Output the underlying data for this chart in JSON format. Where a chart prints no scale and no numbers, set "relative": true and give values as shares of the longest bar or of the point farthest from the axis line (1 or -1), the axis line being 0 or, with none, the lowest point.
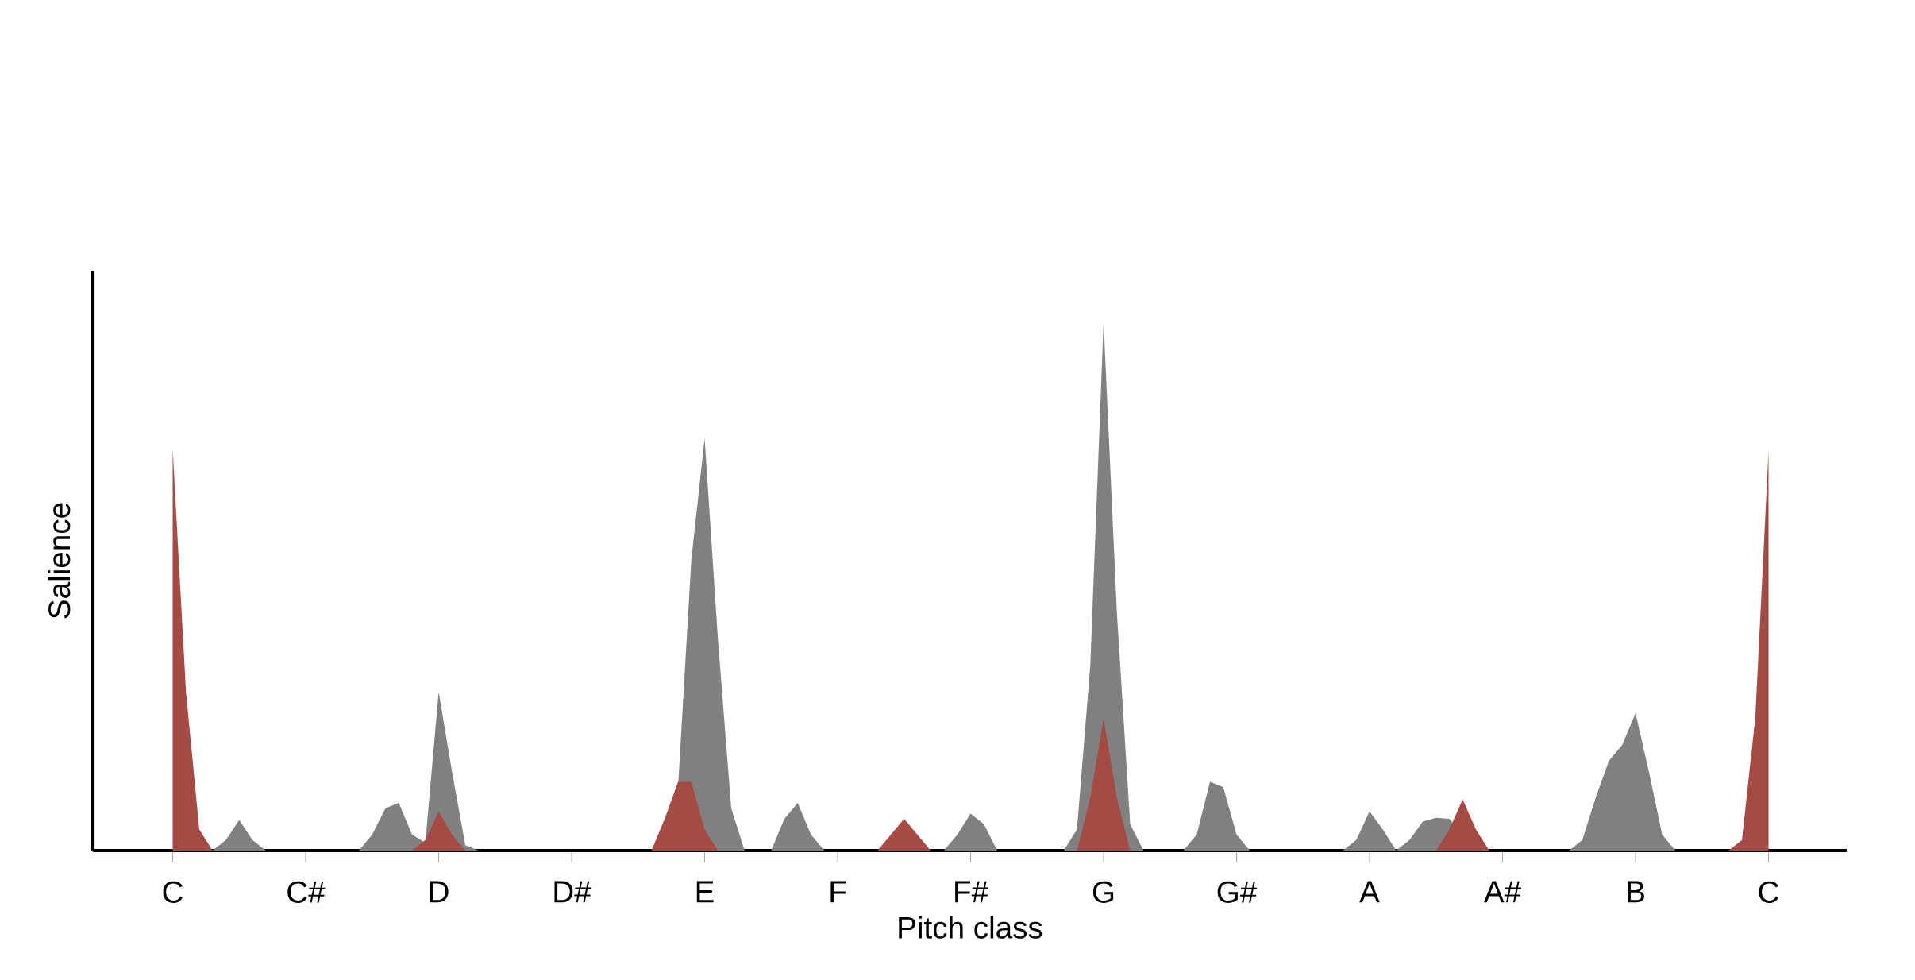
{
  "chart_data": {
    "type": "area",
    "xlabel": "Pitch class",
    "ylabel": "Salience",
    "relative": true,
    "categories": [
      "C",
      null,
      null,
      null,
      null,
      null,
      null,
      null,
      null,
      null,
      "C#",
      null,
      null,
      null,
      null,
      null,
      null,
      null,
      null,
      null,
      "D",
      null,
      null,
      null,
      null,
      null,
      null,
      null,
      null,
      null,
      "D#",
      null,
      null,
      null,
      null,
      null,
      null,
      null,
      null,
      null,
      "E",
      null,
      null,
      null,
      null,
      null,
      null,
      null,
      null,
      null,
      "F",
      null,
      null,
      null,
      null,
      null,
      null,
      null,
      null,
      null,
      "F#",
      null,
      null,
      null,
      null,
      null,
      null,
      null,
      null,
      null,
      "G",
      null,
      null,
      null,
      null,
      null,
      null,
      null,
      null,
      null,
      "G#",
      null,
      null,
      null,
      null,
      null,
      null,
      null,
      null,
      null,
      "A",
      null,
      null,
      null,
      null,
      null,
      null,
      null,
      null,
      null,
      "A#",
      null,
      null,
      null,
      null,
      null,
      null,
      null,
      null,
      null,
      "B",
      null,
      null,
      null,
      null,
      null,
      null,
      null,
      null,
      null,
      "C"
    ],
    "series": [
      {
        "color": "#808080",
        "values": [
          0,
          0,
          0,
          0,
          0.02,
          0.058,
          0.02,
          0,
          0,
          0,
          0,
          0,
          0,
          0,
          0,
          0.03,
          0.08,
          0.09,
          0.03,
          0.015,
          0.3,
          0.15,
          0.01,
          0,
          0,
          0,
          0,
          0,
          0,
          0,
          0,
          0,
          0,
          0,
          0,
          0,
          0,
          0,
          0.12,
          0.55,
          0.78,
          0.4,
          0.08,
          0,
          0,
          0,
          0.06,
          0.09,
          0.03,
          0,
          0,
          0,
          0,
          0,
          0,
          0,
          0,
          0,
          0,
          0.03,
          0.07,
          0.05,
          0,
          0,
          0,
          0,
          0,
          0,
          0.04,
          0.35,
          1,
          0.45,
          0.05,
          0,
          0,
          0,
          0,
          0.03,
          0.13,
          0.12,
          0.03,
          0,
          0,
          0,
          0,
          0,
          0,
          0,
          0,
          0.02,
          0.074,
          0.04,
          0,
          0.02,
          0.055,
          0.062,
          0.06,
          null,
          0,
          0,
          0,
          0,
          0,
          0,
          0,
          0,
          0.02,
          0.1,
          0.17,
          0.2,
          0.26,
          0.15,
          0.03,
          0,
          0,
          0,
          0,
          0,
          0,
          0,
          0
        ]
      },
      {
        "color": "#a54a44",
        "values": [
          0.76,
          0.3,
          0.04,
          0,
          0,
          0,
          0,
          0,
          0,
          0,
          0,
          0,
          0,
          0,
          0,
          0,
          0,
          0,
          0,
          0.02,
          0.074,
          0.03,
          0,
          0,
          0,
          0,
          0,
          0,
          0,
          0,
          0,
          0,
          0,
          0,
          0,
          0,
          0,
          0.06,
          0.13,
          0.13,
          0.04,
          0,
          0,
          0,
          0,
          0,
          0,
          0,
          0,
          0,
          0,
          0,
          0,
          0,
          0.03,
          0.06,
          0.03,
          0,
          0,
          0,
          0,
          0,
          0,
          0,
          0,
          0,
          0,
          0,
          0,
          0.1,
          0.25,
          0.1,
          0,
          0,
          0,
          0,
          0,
          0,
          0,
          0,
          0,
          0,
          0,
          0,
          0,
          0,
          0,
          0,
          0,
          0,
          0,
          0,
          0,
          0,
          0,
          0,
          0.04,
          0.097,
          0.04,
          0,
          0,
          0,
          0,
          0,
          0,
          0,
          0,
          0,
          0,
          0,
          0,
          0,
          0,
          0,
          0,
          0,
          0,
          0,
          0.02,
          0.25,
          0.755
        ]
      }
    ]
  }
}
